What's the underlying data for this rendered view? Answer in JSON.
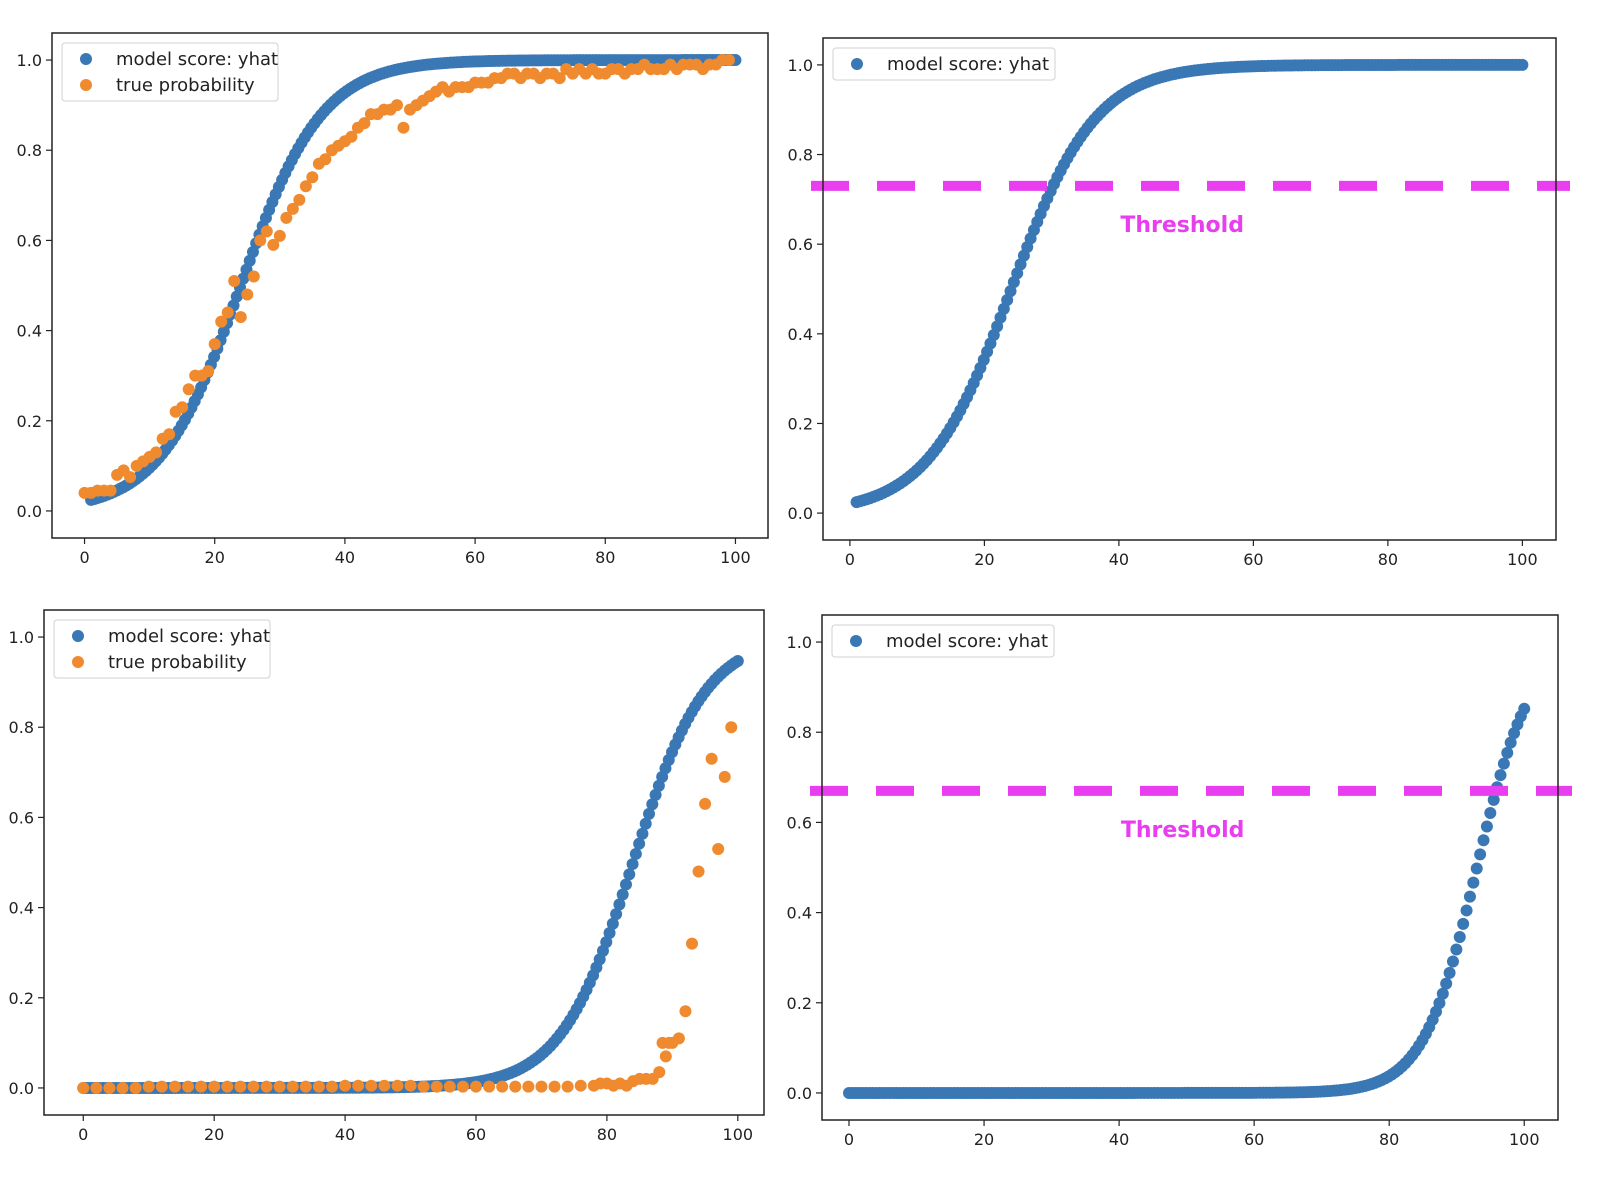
{
  "colors": {
    "model_score": "#3a78b5",
    "true_probability": "#f08a2e",
    "threshold": "#e83ef0"
  },
  "chart_data": [
    {
      "type": "scatter",
      "panel": "top-left",
      "xlim": [
        -5,
        105
      ],
      "ylim": [
        -0.06,
        1.06
      ],
      "xticks": [
        "0",
        "20",
        "40",
        "60",
        "80",
        "100"
      ],
      "yticks": [
        "0.0",
        "0.2",
        "0.4",
        "0.6",
        "0.8",
        "1.0"
      ],
      "legend_placement": "upper-left",
      "grid": false,
      "series": [
        {
          "name": "model score: yhat",
          "color_key": "model_score",
          "curve": {
            "kind": "logistic",
            "x0": 24,
            "k": 0.16,
            "n": 200,
            "xmin": 1,
            "xmax": 100
          }
        },
        {
          "name": "true probability",
          "color_key": "true_probability",
          "points": [
            [
              0,
              0.04
            ],
            [
              1,
              0.04
            ],
            [
              2,
              0.045
            ],
            [
              3,
              0.045
            ],
            [
              4,
              0.045
            ],
            [
              5,
              0.08
            ],
            [
              6,
              0.09
            ],
            [
              7,
              0.075
            ],
            [
              8,
              0.1
            ],
            [
              9,
              0.11
            ],
            [
              10,
              0.12
            ],
            [
              11,
              0.13
            ],
            [
              12,
              0.16
            ],
            [
              13,
              0.17
            ],
            [
              14,
              0.22
            ],
            [
              15,
              0.23
            ],
            [
              16,
              0.27
            ],
            [
              17,
              0.3
            ],
            [
              18,
              0.3
            ],
            [
              19,
              0.31
            ],
            [
              20,
              0.37
            ],
            [
              21,
              0.42
            ],
            [
              22,
              0.44
            ],
            [
              23,
              0.51
            ],
            [
              24,
              0.43
            ],
            [
              25,
              0.48
            ],
            [
              26,
              0.52
            ],
            [
              27,
              0.6
            ],
            [
              28,
              0.62
            ],
            [
              29,
              0.59
            ],
            [
              30,
              0.61
            ],
            [
              31,
              0.65
            ],
            [
              32,
              0.67
            ],
            [
              33,
              0.69
            ],
            [
              34,
              0.72
            ],
            [
              35,
              0.74
            ],
            [
              36,
              0.77
            ],
            [
              37,
              0.78
            ],
            [
              38,
              0.8
            ],
            [
              39,
              0.81
            ],
            [
              40,
              0.82
            ],
            [
              41,
              0.83
            ],
            [
              42,
              0.85
            ],
            [
              43,
              0.86
            ],
            [
              44,
              0.88
            ],
            [
              45,
              0.88
            ],
            [
              46,
              0.89
            ],
            [
              47,
              0.89
            ],
            [
              48,
              0.9
            ],
            [
              49,
              0.85
            ],
            [
              50,
              0.89
            ],
            [
              51,
              0.9
            ],
            [
              52,
              0.91
            ],
            [
              53,
              0.92
            ],
            [
              54,
              0.93
            ],
            [
              55,
              0.94
            ],
            [
              56,
              0.93
            ],
            [
              57,
              0.94
            ],
            [
              58,
              0.94
            ],
            [
              59,
              0.94
            ],
            [
              60,
              0.95
            ],
            [
              61,
              0.95
            ],
            [
              62,
              0.95
            ],
            [
              63,
              0.96
            ],
            [
              64,
              0.96
            ],
            [
              65,
              0.97
            ],
            [
              66,
              0.97
            ],
            [
              67,
              0.96
            ],
            [
              68,
              0.97
            ],
            [
              69,
              0.97
            ],
            [
              70,
              0.96
            ],
            [
              71,
              0.97
            ],
            [
              72,
              0.97
            ],
            [
              73,
              0.96
            ],
            [
              74,
              0.98
            ],
            [
              75,
              0.97
            ],
            [
              76,
              0.98
            ],
            [
              77,
              0.97
            ],
            [
              78,
              0.98
            ],
            [
              79,
              0.97
            ],
            [
              80,
              0.97
            ],
            [
              81,
              0.98
            ],
            [
              82,
              0.98
            ],
            [
              83,
              0.97
            ],
            [
              84,
              0.98
            ],
            [
              85,
              0.98
            ],
            [
              86,
              0.99
            ],
            [
              87,
              0.98
            ],
            [
              88,
              0.98
            ],
            [
              89,
              0.98
            ],
            [
              90,
              0.99
            ],
            [
              91,
              0.98
            ],
            [
              92,
              0.99
            ],
            [
              93,
              0.99
            ],
            [
              94,
              0.99
            ],
            [
              95,
              0.98
            ],
            [
              96,
              0.99
            ],
            [
              97,
              0.99
            ],
            [
              98,
              1.0
            ],
            [
              99,
              1.0
            ]
          ]
        }
      ]
    },
    {
      "type": "scatter",
      "panel": "top-right",
      "xlim": [
        -4,
        105
      ],
      "ylim": [
        -0.06,
        1.06
      ],
      "xticks": [
        "0",
        "20",
        "40",
        "60",
        "80",
        "100"
      ],
      "yticks": [
        "0.0",
        "0.2",
        "0.4",
        "0.6",
        "0.8",
        "1.0"
      ],
      "legend_placement": "upper-left",
      "grid": false,
      "threshold": {
        "label": "Threshold",
        "y": 0.73
      },
      "series": [
        {
          "name": "model score: yhat",
          "color_key": "model_score",
          "curve": {
            "kind": "logistic",
            "x0": 24,
            "k": 0.16,
            "n": 200,
            "xmin": 1,
            "xmax": 100
          }
        }
      ]
    },
    {
      "type": "scatter",
      "panel": "bottom-left",
      "xlim": [
        -6,
        104
      ],
      "ylim": [
        -0.06,
        1.06
      ],
      "xticks": [
        "0",
        "20",
        "40",
        "60",
        "80",
        "100"
      ],
      "yticks": [
        "0.0",
        "0.2",
        "0.4",
        "0.6",
        "0.8",
        "1.0"
      ],
      "legend_placement": "upper-left",
      "grid": false,
      "series": [
        {
          "name": "model score: yhat",
          "color_key": "model_score",
          "curve": {
            "kind": "logistic",
            "x0": 84,
            "k": 0.18,
            "n": 200,
            "xmin": 0,
            "xmax": 100
          }
        },
        {
          "name": "true probability",
          "color_key": "true_probability",
          "points": [
            [
              0,
              0.0
            ],
            [
              2,
              0.0
            ],
            [
              4,
              0.0
            ],
            [
              6,
              0.0
            ],
            [
              8,
              0.0
            ],
            [
              10,
              0.003
            ],
            [
              12,
              0.003
            ],
            [
              14,
              0.003
            ],
            [
              16,
              0.003
            ],
            [
              18,
              0.003
            ],
            [
              20,
              0.003
            ],
            [
              22,
              0.003
            ],
            [
              24,
              0.003
            ],
            [
              26,
              0.003
            ],
            [
              28,
              0.003
            ],
            [
              30,
              0.003
            ],
            [
              32,
              0.003
            ],
            [
              34,
              0.003
            ],
            [
              36,
              0.003
            ],
            [
              38,
              0.003
            ],
            [
              40,
              0.005
            ],
            [
              42,
              0.005
            ],
            [
              44,
              0.005
            ],
            [
              46,
              0.005
            ],
            [
              48,
              0.005
            ],
            [
              50,
              0.005
            ],
            [
              52,
              0.003
            ],
            [
              54,
              0.003
            ],
            [
              56,
              0.003
            ],
            [
              58,
              0.003
            ],
            [
              60,
              0.003
            ],
            [
              62,
              0.003
            ],
            [
              64,
              0.003
            ],
            [
              66,
              0.003
            ],
            [
              68,
              0.003
            ],
            [
              70,
              0.003
            ],
            [
              72,
              0.003
            ],
            [
              74,
              0.003
            ],
            [
              76,
              0.005
            ],
            [
              78,
              0.005
            ],
            [
              79,
              0.01
            ],
            [
              80,
              0.01
            ],
            [
              81,
              0.005
            ],
            [
              82,
              0.01
            ],
            [
              83,
              0.005
            ],
            [
              84,
              0.015
            ],
            [
              85,
              0.02
            ],
            [
              86,
              0.02
            ],
            [
              87,
              0.02
            ],
            [
              88,
              0.035
            ],
            [
              88.5,
              0.1
            ],
            [
              89,
              0.07
            ],
            [
              89.5,
              0.1
            ],
            [
              90,
              0.1
            ],
            [
              91,
              0.11
            ],
            [
              92,
              0.17
            ],
            [
              93,
              0.32
            ],
            [
              94,
              0.48
            ],
            [
              95,
              0.63
            ],
            [
              96,
              0.73
            ],
            [
              97,
              0.53
            ],
            [
              98,
              0.69
            ],
            [
              99,
              0.8
            ]
          ]
        }
      ]
    },
    {
      "type": "scatter",
      "panel": "bottom-right",
      "xlim": [
        -4,
        105
      ],
      "ylim": [
        -0.06,
        1.06
      ],
      "xticks": [
        "0",
        "20",
        "40",
        "60",
        "80",
        "100"
      ],
      "yticks": [
        "0.0",
        "0.2",
        "0.4",
        "0.6",
        "0.8",
        "1.0"
      ],
      "legend_placement": "upper-left",
      "grid": false,
      "threshold": {
        "label": "Threshold",
        "y": 0.67
      },
      "series": [
        {
          "name": "model score: yhat",
          "color_key": "model_score",
          "curve": {
            "kind": "logistic",
            "x0": 93,
            "k": 0.25,
            "n": 200,
            "xmin": 0,
            "xmax": 100
          }
        }
      ]
    }
  ]
}
